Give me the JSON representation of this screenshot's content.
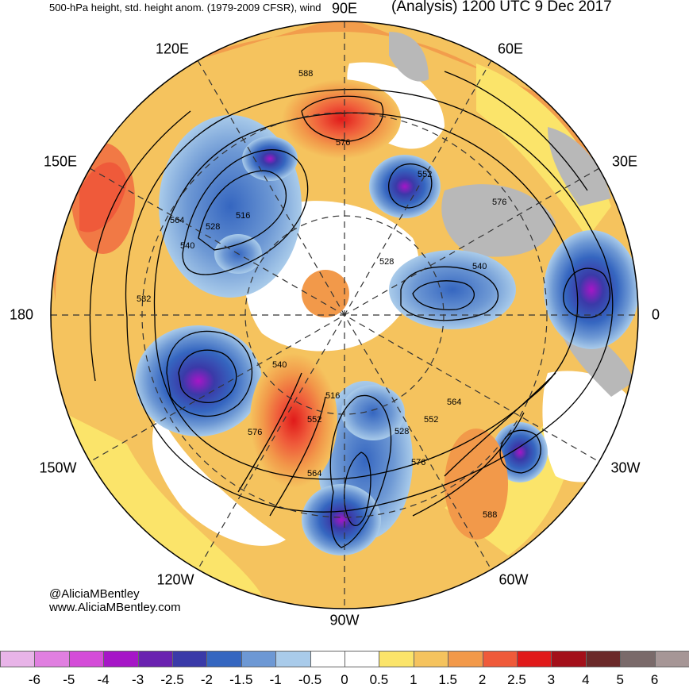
{
  "header": {
    "title_left": "500-hPa height, std. height anom. (1979-2009 CFSR), wind",
    "title_right": "(Analysis) 1200 UTC 9 Dec 2017"
  },
  "longitude_labels": {
    "lon_90e": "90E",
    "lon_120e": "120E",
    "lon_60e": "60E",
    "lon_150e": "150E",
    "lon_30e": "30E",
    "lon_180": "180",
    "lon_0": "0",
    "lon_150w": "150W",
    "lon_30w": "30W",
    "lon_120w": "120W",
    "lon_60w": "60W",
    "lon_90w": "90W"
  },
  "contour_labels": [
    "588",
    "576",
    "552",
    "564",
    "540",
    "528",
    "516",
    "528",
    "540",
    "576",
    "582",
    "540",
    "552",
    "576",
    "516",
    "528",
    "552",
    "564",
    "564",
    "576",
    "588"
  ],
  "credits": {
    "twitter": "@AliciaMBentley",
    "website": "www.AliciaMBentley.com"
  },
  "colorbar": {
    "labels": [
      "-6",
      "-5",
      "-4",
      "-3",
      "-2.5",
      "-2",
      "-1.5",
      "-1",
      "-0.5",
      "0",
      "0.5",
      "1",
      "1.5",
      "2",
      "2.5",
      "3",
      "4",
      "5",
      "6"
    ],
    "colors": [
      "#e8b4e8",
      "#e07fe0",
      "#d44cd8",
      "#a616c7",
      "#6a22b0",
      "#3a3aa8",
      "#3566c0",
      "#6d98d4",
      "#a9cbea",
      "#ffffff",
      "#ffffff",
      "#fbe46a",
      "#f5c35e",
      "#f2994a",
      "#ef5a3a",
      "#e01a1a",
      "#a3101a",
      "#6b2a2a",
      "#7a6a6a",
      "#a69696"
    ]
  }
}
